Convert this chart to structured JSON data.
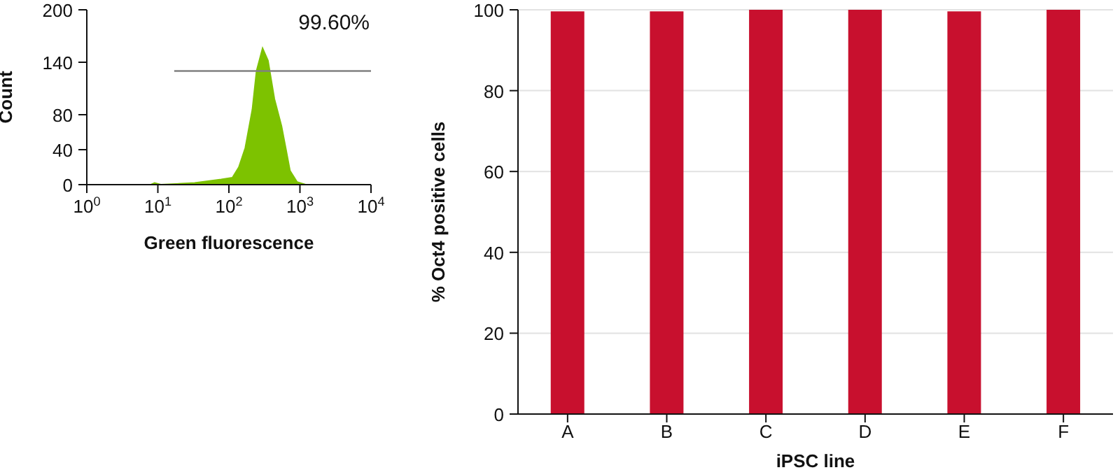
{
  "chart_data": [
    {
      "type": "area",
      "xlabel": "Green fluorescence",
      "ylabel": "Count",
      "log": "x",
      "xlim": [
        1,
        10000
      ],
      "xticks": [
        {
          "value": 1,
          "label": "10$^{0}$"
        },
        {
          "value": 10,
          "label": "10$^{1}$"
        },
        {
          "value": 100,
          "label": "10$^{2}$"
        },
        {
          "value": 1000,
          "label": "10$^{3}$"
        },
        {
          "value": 10000,
          "label": "10$^{4}$"
        }
      ],
      "ylim": [
        0,
        200
      ],
      "yticks": [
        0,
        40,
        80,
        140,
        200
      ],
      "grid": false,
      "annotations": [
        "99.60%"
      ],
      "series": [
        {
          "type": "area",
          "color": "#7dc200",
          "x": [
            1,
            8,
            9,
            11,
            33,
            78,
            112,
            138,
            170,
            214,
            245,
            298,
            355,
            437,
            550,
            630,
            724,
            912,
            1200,
            10000
          ],
          "values": [
            0,
            0,
            2,
            0,
            2,
            6,
            8,
            20,
            42,
            86,
            130,
            156,
            142,
            98,
            67,
            42,
            16,
            3,
            0,
            0
          ]
        },
        {
          "type": "line",
          "color": "#808080",
          "x": [
            17,
            10000
          ],
          "values": [
            130,
            130
          ]
        }
      ]
    },
    {
      "type": "bar",
      "xlabel": "iPSC line",
      "ylabel": "% Oct4 positive cells",
      "categories": [
        "A",
        "B",
        "C",
        "D",
        "E",
        "F"
      ],
      "values": [
        99.6,
        99.6,
        100,
        100,
        99.6,
        100
      ],
      "color": "#c8102e",
      "ylim": [
        0,
        100
      ],
      "yticks": [
        0,
        20,
        40,
        60,
        80,
        100
      ],
      "grid": "y"
    }
  ]
}
